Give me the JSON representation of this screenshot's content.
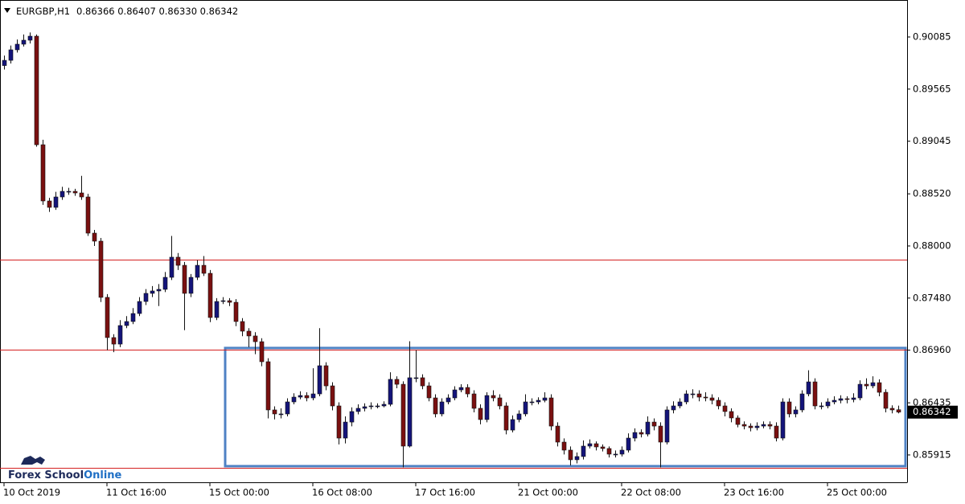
{
  "chart_data": {
    "type": "candlestick",
    "title": "EURGBP,H1",
    "quote": "0.86366 0.86407 0.86330 0.86342",
    "categories": [
      "10 Oct 2019",
      null,
      null,
      null,
      null,
      null,
      null,
      null,
      null,
      null,
      null,
      null,
      null,
      null,
      null,
      null,
      "11 Oct 16:00",
      null,
      null,
      null,
      null,
      null,
      null,
      null,
      null,
      null,
      null,
      null,
      null,
      null,
      null,
      null,
      "15 Oct 00:00",
      null,
      null,
      null,
      null,
      null,
      null,
      null,
      null,
      null,
      null,
      null,
      null,
      null,
      null,
      null,
      "16 Oct 08:00",
      null,
      null,
      null,
      null,
      null,
      null,
      null,
      null,
      null,
      null,
      null,
      null,
      null,
      null,
      null,
      "17 Oct 16:00",
      null,
      null,
      null,
      null,
      null,
      null,
      null,
      null,
      null,
      null,
      null,
      null,
      null,
      null,
      null,
      "21 Oct 00:00",
      null,
      null,
      null,
      null,
      null,
      null,
      null,
      null,
      null,
      null,
      null,
      null,
      null,
      null,
      null,
      "22 Oct 08:00",
      null,
      null,
      null,
      null,
      null,
      null,
      null,
      null,
      null,
      null,
      null,
      null,
      null,
      null,
      null,
      "23 Oct 16:00",
      null,
      null,
      null,
      null,
      null,
      null,
      null,
      null,
      null,
      null,
      null,
      null,
      null,
      null,
      null,
      "25 Oct 00:00",
      null,
      null,
      null,
      null,
      null,
      null,
      null,
      null,
      null,
      null,
      null
    ],
    "open": [
      0.898,
      0.89852,
      0.89957,
      0.90013,
      0.90053,
      0.90093,
      0.8901,
      0.88449,
      0.88385,
      0.88489,
      0.88545,
      0.88545,
      0.88529,
      0.88489,
      0.88128,
      0.88048,
      0.87487,
      0.87086,
      0.87021,
      0.87206,
      0.87246,
      0.87326,
      0.87446,
      0.87527,
      0.87551,
      0.87567,
      0.87687,
      0.87888,
      0.87807,
      0.87527,
      0.87687,
      0.87807,
      0.87727,
      0.87286,
      0.87446,
      0.87454,
      0.87438,
      0.87246,
      0.8715,
      0.87102,
      0.87045,
      0.86845,
      0.86364,
      0.86324,
      0.86324,
      0.86444,
      0.86492,
      0.86508,
      0.86484,
      0.86524,
      0.86805,
      0.86604,
      0.86404,
      0.86083,
      0.86243,
      0.86348,
      0.8638,
      0.86396,
      0.86404,
      0.86404,
      0.8642,
      0.86669,
      0.8662,
      0.86003,
      0.86685,
      0.86685,
      0.86604,
      0.86484,
      0.86324,
      0.86444,
      0.86484,
      0.86564,
      0.86588,
      0.86524,
      0.8638,
      0.86268,
      0.86508,
      0.86484,
      0.86404,
      0.86163,
      0.86268,
      0.86324,
      0.86444,
      0.86444,
      0.8646,
      0.86484,
      0.86203,
      0.86043,
      0.85963,
      0.85867,
      0.85899,
      0.86003,
      0.86027,
      0.85995,
      0.85979,
      0.85923,
      0.85923,
      0.85963,
      0.86083,
      0.86139,
      0.86123,
      0.86243,
      0.86203,
      0.86043,
      0.86364,
      0.86404,
      0.86444,
      0.86524,
      0.86524,
      0.86492,
      0.86484,
      0.8646,
      0.86404,
      0.86348,
      0.86284,
      0.86219,
      0.86203,
      0.86187,
      0.86203,
      0.86219,
      0.86203,
      0.86083,
      0.86444,
      0.86324,
      0.86364,
      0.86524,
      0.86644,
      0.86404,
      0.86404,
      0.86444,
      0.8646,
      0.86476,
      0.86468,
      0.86484,
      0.8662,
      0.86604,
      0.86636,
      0.8654,
      0.8638,
      0.86366
    ],
    "high": [
      0.899,
      0.9,
      0.9006,
      0.9011,
      0.9013,
      0.9011,
      0.8906,
      0.8848,
      0.8854,
      0.8859,
      0.8858,
      0.8857,
      0.887,
      0.8852,
      0.8816,
      0.8808,
      0.8752,
      0.8712,
      0.8726,
      0.873,
      0.8738,
      0.8749,
      0.8757,
      0.876,
      0.8762,
      0.8774,
      0.881,
      0.8793,
      0.8784,
      0.8772,
      0.8786,
      0.879,
      0.8776,
      0.8748,
      0.8749,
      0.8748,
      0.8747,
      0.8728,
      0.8718,
      0.8714,
      0.8708,
      0.8688,
      0.864,
      0.8638,
      0.8648,
      0.8653,
      0.8655,
      0.8654,
      0.8678,
      0.8718,
      0.8684,
      0.8664,
      0.8644,
      0.863,
      0.8639,
      0.8642,
      0.8643,
      0.8644,
      0.8643,
      0.8645,
      0.8674,
      0.867,
      0.8665,
      0.8705,
      0.8696,
      0.8672,
      0.8664,
      0.8652,
      0.8648,
      0.8652,
      0.866,
      0.8662,
      0.8662,
      0.8656,
      0.8642,
      0.8654,
      0.8656,
      0.8652,
      0.8644,
      0.8631,
      0.8636,
      0.8652,
      0.8648,
      0.8649,
      0.8654,
      0.8652,
      0.8624,
      0.8608,
      0.86,
      0.8594,
      0.8606,
      0.8607,
      0.8605,
      0.8602,
      0.86,
      0.8596,
      0.86,
      0.8613,
      0.8618,
      0.8617,
      0.863,
      0.8628,
      0.8624,
      0.864,
      0.8645,
      0.8648,
      0.8656,
      0.8657,
      0.8656,
      0.8654,
      0.8652,
      0.8649,
      0.8644,
      0.8638,
      0.8631,
      0.8625,
      0.8623,
      0.8624,
      0.8625,
      0.8625,
      0.8624,
      0.8648,
      0.8648,
      0.864,
      0.8656,
      0.8676,
      0.8668,
      0.8644,
      0.8648,
      0.865,
      0.8651,
      0.865,
      0.8653,
      0.8666,
      0.8668,
      0.867,
      0.8667,
      0.8657,
      0.8641,
      0.86407
    ],
    "low": [
      0.8976,
      0.8982,
      0.8993,
      0.8999,
      0.9002,
      0.8899,
      0.8841,
      0.8834,
      0.8836,
      0.8846,
      0.8851,
      0.885,
      0.8846,
      0.881,
      0.88,
      0.8744,
      0.8696,
      0.8694,
      0.8699,
      0.8718,
      0.8722,
      0.873,
      0.8741,
      0.8749,
      0.874,
      0.8754,
      0.8766,
      0.8776,
      0.8716,
      0.8749,
      0.8766,
      0.877,
      0.8724,
      0.8726,
      0.8742,
      0.874,
      0.872,
      0.871,
      0.8699,
      0.8692,
      0.868,
      0.8628,
      0.8627,
      0.8628,
      0.863,
      0.8642,
      0.8647,
      0.8645,
      0.8646,
      0.865,
      0.8656,
      0.8636,
      0.8602,
      0.8603,
      0.862,
      0.8632,
      0.8635,
      0.8637,
      0.8638,
      0.8639,
      0.864,
      0.8658,
      0.8579,
      0.8599,
      0.8664,
      0.8657,
      0.8645,
      0.8629,
      0.863,
      0.8642,
      0.8646,
      0.8654,
      0.8649,
      0.8634,
      0.8622,
      0.8624,
      0.8645,
      0.8637,
      0.8612,
      0.8614,
      0.8624,
      0.863,
      0.8641,
      0.8642,
      0.8644,
      0.8616,
      0.86,
      0.8592,
      0.8581,
      0.8583,
      0.8587,
      0.8598,
      0.8596,
      0.8595,
      0.8589,
      0.8589,
      0.859,
      0.8594,
      0.8605,
      0.8609,
      0.861,
      0.8616,
      0.8579,
      0.8602,
      0.8633,
      0.8638,
      0.8642,
      0.8648,
      0.8645,
      0.8645,
      0.8642,
      0.8637,
      0.863,
      0.8624,
      0.8619,
      0.8617,
      0.8615,
      0.8616,
      0.8618,
      0.8617,
      0.8605,
      0.8606,
      0.8629,
      0.8629,
      0.8634,
      0.865,
      0.8637,
      0.8637,
      0.8638,
      0.8642,
      0.8643,
      0.8643,
      0.8644,
      0.8646,
      0.8657,
      0.8658,
      0.865,
      0.8634,
      0.8633,
      0.8633
    ],
    "close": [
      0.89852,
      0.89957,
      0.90013,
      0.90053,
      0.90093,
      0.8901,
      0.88449,
      0.88385,
      0.88489,
      0.88545,
      0.88545,
      0.88529,
      0.88489,
      0.88128,
      0.88048,
      0.87487,
      0.87086,
      0.87021,
      0.87206,
      0.87246,
      0.87326,
      0.87446,
      0.87527,
      0.87551,
      0.87567,
      0.87687,
      0.87888,
      0.87807,
      0.87527,
      0.87687,
      0.87807,
      0.87727,
      0.87286,
      0.87446,
      0.87454,
      0.87438,
      0.87246,
      0.8715,
      0.87102,
      0.87045,
      0.86845,
      0.86364,
      0.86324,
      0.86324,
      0.86444,
      0.86492,
      0.86508,
      0.86484,
      0.86524,
      0.86805,
      0.86604,
      0.86404,
      0.86083,
      0.86243,
      0.86348,
      0.8638,
      0.86396,
      0.86404,
      0.86404,
      0.8642,
      0.86669,
      0.8662,
      0.86003,
      0.86685,
      0.86685,
      0.86604,
      0.86484,
      0.86324,
      0.86444,
      0.86484,
      0.86564,
      0.86588,
      0.86524,
      0.8638,
      0.86268,
      0.86508,
      0.86484,
      0.86404,
      0.86163,
      0.86268,
      0.86324,
      0.86444,
      0.86444,
      0.8646,
      0.86484,
      0.86203,
      0.86043,
      0.85963,
      0.85867,
      0.85899,
      0.86003,
      0.86027,
      0.85995,
      0.85979,
      0.85923,
      0.85923,
      0.85963,
      0.86083,
      0.86139,
      0.86123,
      0.86243,
      0.86203,
      0.86043,
      0.86364,
      0.86404,
      0.86444,
      0.86524,
      0.86524,
      0.86492,
      0.86484,
      0.8646,
      0.86404,
      0.86348,
      0.86284,
      0.86219,
      0.86203,
      0.86187,
      0.86203,
      0.86219,
      0.86203,
      0.86083,
      0.86444,
      0.86324,
      0.86364,
      0.86524,
      0.86644,
      0.86404,
      0.86404,
      0.86444,
      0.8646,
      0.86476,
      0.86468,
      0.86484,
      0.8662,
      0.86604,
      0.86636,
      0.8654,
      0.8638,
      0.86364,
      0.86342
    ],
    "bull_color": "#14147a",
    "bear_color": "#7a1010",
    "wick_color": "#111111",
    "ylim": [
      0.85642,
      0.90454
    ],
    "yticks": [
      0.90085,
      0.89565,
      0.89045,
      {
        "value": 0.8852,
        "label": "0.88520"
      },
      {
        "value": 0.88,
        "label": "0.88000"
      },
      {
        "value": 0.8748,
        "label": "0.87480"
      },
      {
        "value": 0.8696,
        "label": "0.86960"
      },
      0.86435,
      0.85915
    ],
    "levels": [
      0.87864,
      0.86966,
      0.85787
    ],
    "level_color": "#d42020",
    "zone": {
      "top": 0.86982,
      "bottom": 0.85803,
      "color": "#4f82c4"
    }
  },
  "logo": {
    "text": "Forex School",
    "highlight": "Online"
  }
}
